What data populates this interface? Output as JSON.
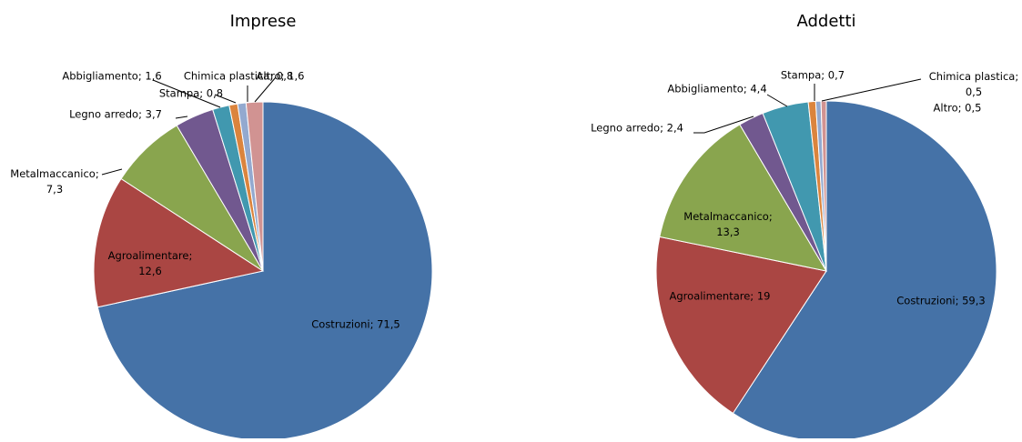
{
  "chart_data": [
    {
      "type": "pie",
      "title": "Imprese",
      "values": [
        71.5,
        12.6,
        7.3,
        3.7,
        1.6,
        0.8,
        0.8,
        1.6
      ],
      "value_labels": [
        "Costruzioni; 71,5",
        "Agroalimentare; 12,6",
        "Metalmaccanico; 7,3",
        "Legno arredo; 3,7",
        "Abbigliamento; 1,6",
        "Stampa; 0,8",
        "Chimica plastica; 0,8",
        "Altro; 1,6"
      ],
      "colors": [
        "#4572a7",
        "#aa4643",
        "#89a54e",
        "#71588f",
        "#4198af",
        "#db843d",
        "#93a9cf",
        "#d19392"
      ]
    },
    {
      "type": "pie",
      "title": "Addetti",
      "values": [
        59.3,
        19,
        13.3,
        2.4,
        4.4,
        0.7,
        0.5,
        0.5
      ],
      "value_labels": [
        "Costruzioni; 59,3",
        "Agroalimentare; 19",
        "Metalmaccanico; 13,3",
        "Legno arredo; 2,4",
        "Abbigliamento; 4,4",
        "Stampa; 0,7",
        "Chimica plastica; 0,5",
        "Altro; 0,5"
      ],
      "colors": [
        "#4572a7",
        "#aa4643",
        "#89a54e",
        "#71588f",
        "#4198af",
        "#db843d",
        "#93a9cf",
        "#d19392"
      ]
    }
  ]
}
